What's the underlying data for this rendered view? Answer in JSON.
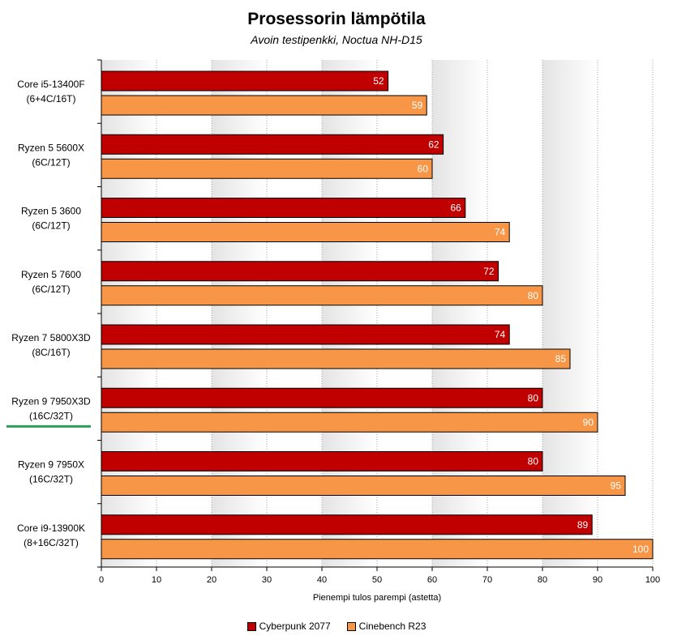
{
  "chart_data": {
    "type": "bar",
    "orientation": "horizontal",
    "title": "Prosessorin lämpötila",
    "subtitle": "Avoin testipenkki, Noctua NH-D15",
    "xlabel": "Pienempi tulos parempi (astetta)",
    "xlim": [
      0,
      100
    ],
    "xticks": [
      0,
      10,
      20,
      30,
      40,
      50,
      60,
      70,
      80,
      90,
      100
    ],
    "grid": true,
    "legend_position": "bottom",
    "categories": [
      {
        "name": "Core i5-13400F",
        "spec": "(6+4C/16T)",
        "highlight": false
      },
      {
        "name": "Ryzen 5 5600X",
        "spec": "(6C/12T)",
        "highlight": false
      },
      {
        "name": "Ryzen 5 3600",
        "spec": "(6C/12T)",
        "highlight": false
      },
      {
        "name": "Ryzen 5 7600",
        "spec": "(6C/12T)",
        "highlight": false
      },
      {
        "name": "Ryzen 7 5800X3D",
        "spec": "(8C/16T)",
        "highlight": false
      },
      {
        "name": "Ryzen 9 7950X3D",
        "spec": "(16C/32T)",
        "highlight": true
      },
      {
        "name": "Ryzen 9 7950X",
        "spec": "(16C/32T)",
        "highlight": false
      },
      {
        "name": "Core i9-13900K",
        "spec": "(8+16C/32T)",
        "highlight": false
      }
    ],
    "series": [
      {
        "name": "Cyberpunk 2077",
        "color": "#c00000",
        "values": [
          52,
          62,
          66,
          72,
          74,
          80,
          80,
          89
        ]
      },
      {
        "name": "Cinebench R23",
        "color": "#f79646",
        "values": [
          59,
          60,
          74,
          80,
          85,
          90,
          95,
          100
        ]
      }
    ],
    "highlight_color": "#2e9e5b"
  }
}
